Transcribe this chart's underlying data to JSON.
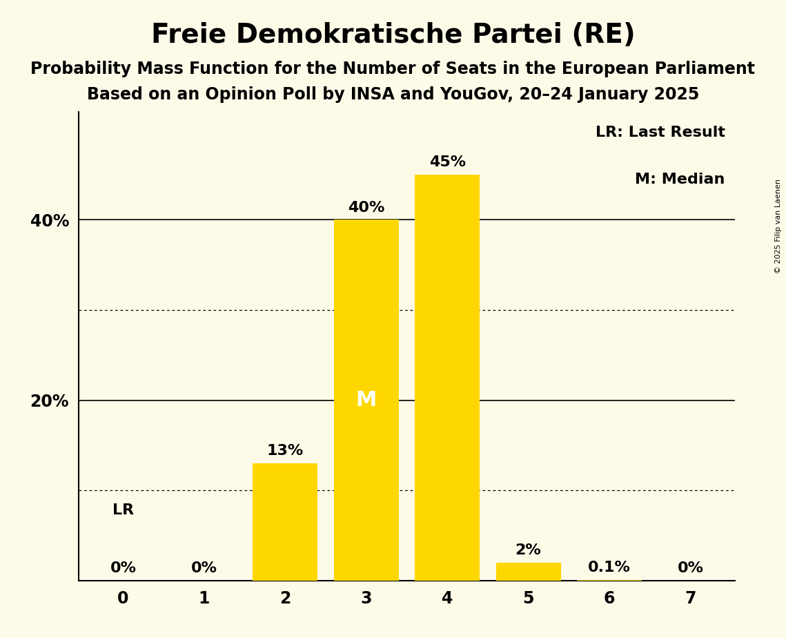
{
  "title": "Freie Demokratische Partei (RE)",
  "subtitle1": "Probability Mass Function for the Number of Seats in the European Parliament",
  "subtitle2": "Based on an Opinion Poll by INSA and YouGov, 20–24 January 2025",
  "copyright": "© 2025 Filip van Laenen",
  "categories": [
    0,
    1,
    2,
    3,
    4,
    5,
    6,
    7
  ],
  "values": [
    0.0,
    0.0,
    0.13,
    0.4,
    0.45,
    0.02,
    0.001,
    0.0
  ],
  "bar_labels": [
    "0%",
    "0%",
    "13%",
    "40%",
    "45%",
    "2%",
    "0.1%",
    "0%"
  ],
  "bar_color": "#FFD700",
  "background_color": "#FDFAE8",
  "median_bar": 3,
  "median_label": "M",
  "lr_bar": 0,
  "lr_label": "LR",
  "legend_lr": "LR: Last Result",
  "legend_m": "M: Median",
  "yticks": [
    0.2,
    0.4
  ],
  "ytick_labels": [
    "20%",
    "40%"
  ],
  "ylim": [
    0,
    0.52
  ],
  "solid_gridlines": [
    0.2,
    0.4
  ],
  "dotted_gridlines": [
    0.1,
    0.3
  ],
  "title_fontsize": 28,
  "subtitle_fontsize": 17,
  "label_fontsize": 16,
  "tick_fontsize": 17,
  "median_fontsize": 22
}
